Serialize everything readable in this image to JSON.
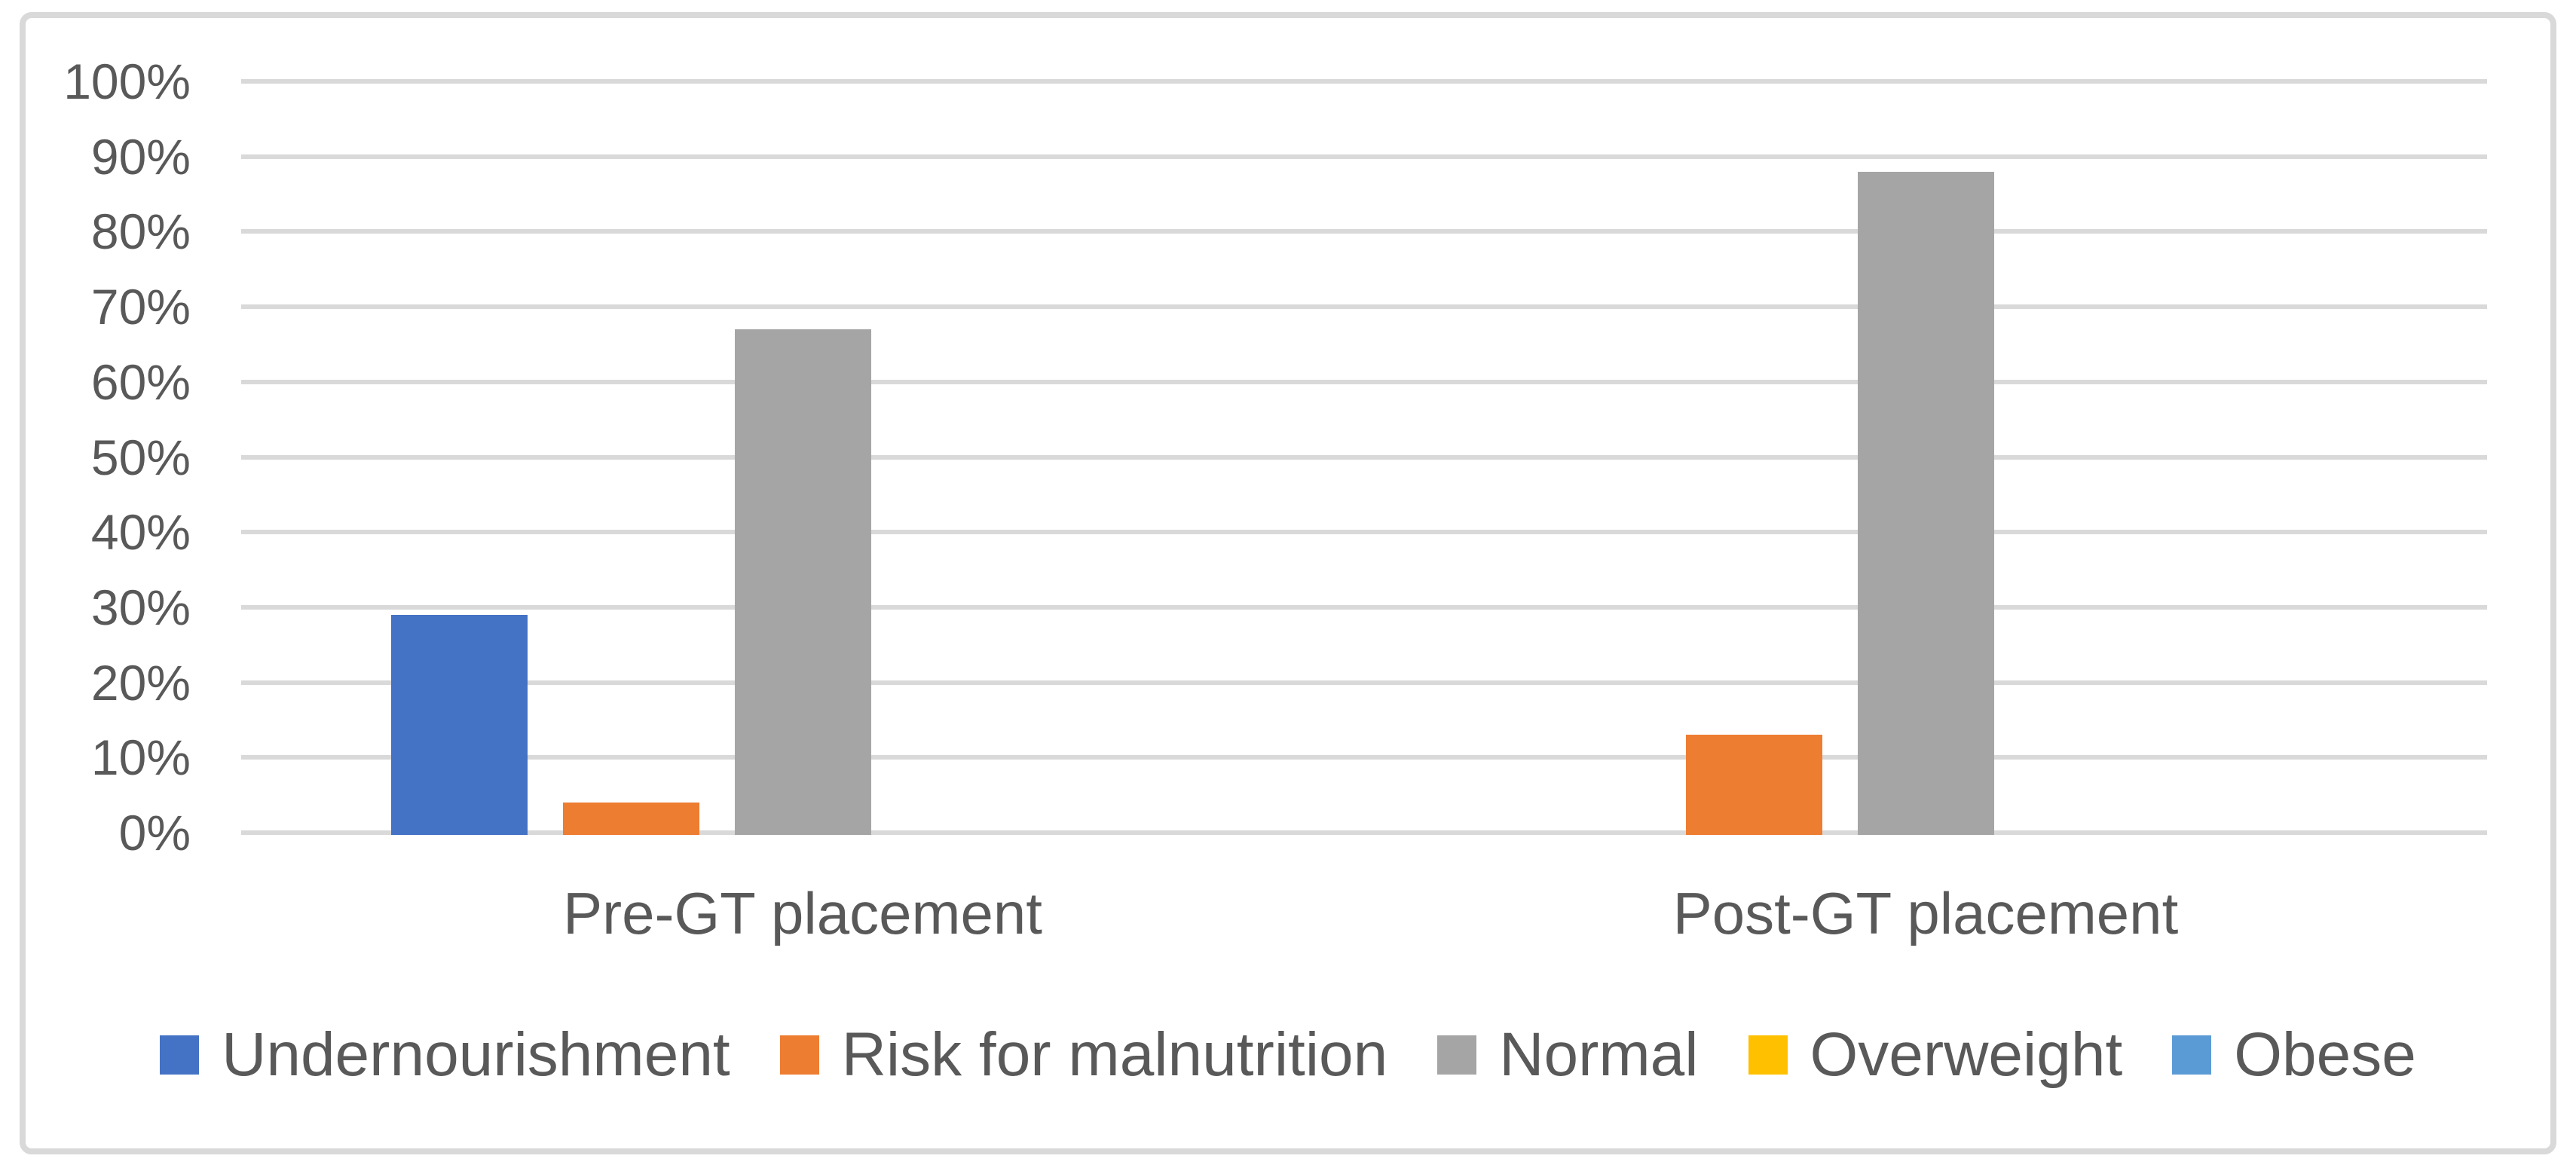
{
  "chart_data": {
    "type": "bar",
    "categories": [
      "Pre-GT placement",
      "Post-GT placement"
    ],
    "series": [
      {
        "name": "Undernourishment",
        "color": "#4472C4",
        "values": [
          29,
          0
        ]
      },
      {
        "name": "Risk for malnutrition",
        "color": "#ED7D31",
        "values": [
          4,
          13
        ]
      },
      {
        "name": "Normal",
        "color": "#A5A5A5",
        "values": [
          67,
          88
        ]
      },
      {
        "name": "Overweight",
        "color": "#FFC000",
        "values": [
          0,
          0
        ]
      },
      {
        "name": "Obese",
        "color": "#5B9BD5",
        "values": [
          0,
          0
        ]
      }
    ],
    "title": "",
    "xlabel": "",
    "ylabel": "",
    "ylim": [
      0,
      100
    ],
    "ytick_step": 10,
    "ytick_labels": [
      "0%",
      "10%",
      "20%",
      "30%",
      "40%",
      "50%",
      "60%",
      "70%",
      "80%",
      "90%",
      "100%"
    ],
    "grid": true,
    "legend_position": "bottom",
    "colors": {
      "gridline": "#d9d9d9",
      "frame_border": "#d9d9d9",
      "text": "#595959",
      "background": "#ffffff"
    }
  }
}
